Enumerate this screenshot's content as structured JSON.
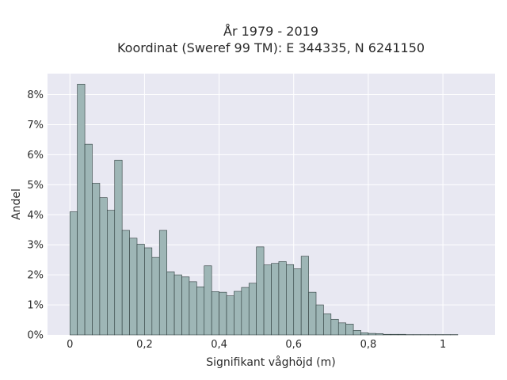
{
  "chart_data": {
    "type": "bar",
    "title": "År 1979 - 2019",
    "subtitle": "Koordinat (Sweref 99 TM): E 344335, N 6241150",
    "xlabel": "Signifikant våghöjd (m)",
    "ylabel": "Andel",
    "xlim": [
      -0.06,
      1.14
    ],
    "ylim": [
      0,
      8.7
    ],
    "x_ticks": [
      0,
      0.2,
      0.4,
      0.6,
      0.8,
      1
    ],
    "x_tick_labels": [
      "0",
      "0,2",
      "0,4",
      "0,6",
      "0,8",
      "1"
    ],
    "y_ticks": [
      0,
      1,
      2,
      3,
      4,
      5,
      6,
      7,
      8
    ],
    "y_tick_labels": [
      "0%",
      "1%",
      "2%",
      "3%",
      "4%",
      "5%",
      "6%",
      "7%",
      "8%"
    ],
    "bin_width": 0.02,
    "bin_starts": [
      0,
      0.02,
      0.04,
      0.06,
      0.08,
      0.1,
      0.12,
      0.14,
      0.16,
      0.18,
      0.2,
      0.22,
      0.24,
      0.26,
      0.28,
      0.3,
      0.32,
      0.34,
      0.36,
      0.38,
      0.4,
      0.42,
      0.44,
      0.46,
      0.48,
      0.5,
      0.52,
      0.54,
      0.56,
      0.58,
      0.6,
      0.62,
      0.64,
      0.66,
      0.68,
      0.7,
      0.72,
      0.74,
      0.76,
      0.78,
      0.8,
      0.82,
      0.84,
      0.86,
      0.88,
      0.9,
      0.92,
      0.94,
      0.96,
      0.98,
      1.0,
      1.02
    ],
    "values": [
      4.1,
      8.35,
      6.35,
      5.05,
      4.57,
      4.15,
      5.82,
      3.48,
      3.22,
      3.02,
      2.9,
      2.58,
      3.48,
      2.1,
      2.0,
      1.93,
      1.77,
      1.6,
      2.3,
      1.44,
      1.42,
      1.3,
      1.45,
      1.58,
      1.72,
      2.93,
      2.33,
      2.38,
      2.44,
      2.34,
      2.2,
      2.62,
      1.42,
      1.0,
      0.7,
      0.52,
      0.4,
      0.36,
      0.15,
      0.07,
      0.05,
      0.04,
      0.02,
      0.02,
      0.02,
      0.01,
      0.01,
      0.01,
      0.01,
      0.01,
      0.01,
      0.01
    ],
    "grid": true,
    "colors": {
      "bar_fill": "#9eb6b6",
      "bar_edge": "#2f3d3d",
      "plot_bg": "#e8e8f2"
    }
  }
}
